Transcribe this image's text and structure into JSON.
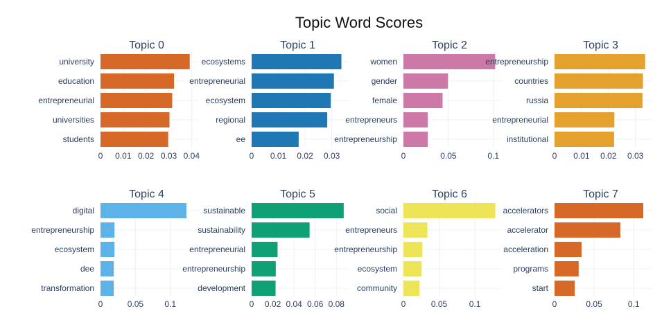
{
  "chart_data": {
    "type": "bar",
    "orientation": "horizontal",
    "title": "Topic Word Scores",
    "grid": true,
    "subplots": [
      {
        "title": "Topic 0",
        "color": "#D66828",
        "categories": [
          "university",
          "education",
          "entrepreneurial",
          "universities",
          "students"
        ],
        "values": [
          0.0392,
          0.0323,
          0.0315,
          0.0303,
          0.0297
        ],
        "xlim": [
          0,
          0.0405
        ],
        "ticks": [
          0,
          0.01,
          0.02,
          0.03,
          0.04
        ],
        "tick_labels": [
          "0",
          "0.01",
          "0.02",
          "0.03",
          "0.04"
        ]
      },
      {
        "title": "Topic 1",
        "color": "#1F77B4",
        "categories": [
          "ecosystems",
          "entrepreneurial",
          "ecosystem",
          "regional",
          "ee"
        ],
        "values": [
          0.0336,
          0.0308,
          0.0296,
          0.0283,
          0.0176
        ],
        "xlim": [
          0,
          0.0345
        ],
        "ticks": [
          0,
          0.01,
          0.02,
          0.03
        ],
        "tick_labels": [
          "0",
          "0.01",
          "0.02",
          "0.03"
        ]
      },
      {
        "title": "Topic 2",
        "color": "#CC79A7",
        "categories": [
          "women",
          "gender",
          "female",
          "entrepreneurs",
          "entrepreneurship"
        ],
        "values": [
          0.102,
          0.0495,
          0.0435,
          0.027,
          0.027
        ],
        "xlim": [
          0,
          0.1025
        ],
        "ticks": [
          0,
          0.05,
          0.1
        ],
        "tick_labels": [
          "0",
          "0.05",
          "0.1"
        ]
      },
      {
        "title": "Topic 3",
        "color": "#E5A12E",
        "categories": [
          "entrepreneurship",
          "countries",
          "russia",
          "entrepreneurial",
          "institutional"
        ],
        "values": [
          0.0336,
          0.0328,
          0.0326,
          0.0222,
          0.0221
        ],
        "xlim": [
          0,
          0.0342
        ],
        "ticks": [
          0,
          0.01,
          0.02,
          0.03
        ],
        "tick_labels": [
          "0",
          "0.01",
          "0.02",
          "0.03"
        ]
      },
      {
        "title": "Topic 4",
        "color": "#5DB3E8",
        "categories": [
          "digital",
          "entrepreneurship",
          "ecosystem",
          "dee",
          "transformation"
        ],
        "values": [
          0.123,
          0.02,
          0.02,
          0.019,
          0.019
        ],
        "xlim": [
          0,
          0.132
        ],
        "ticks": [
          0,
          0.05,
          0.1
        ],
        "tick_labels": [
          "0",
          "0.05",
          "0.1"
        ]
      },
      {
        "title": "Topic 5",
        "color": "#0FA075",
        "categories": [
          "sustainable",
          "sustainability",
          "entrepreneurial",
          "entrepreneurship",
          "development"
        ],
        "values": [
          0.0869,
          0.0547,
          0.0245,
          0.0228,
          0.0226
        ],
        "xlim": [
          0,
          0.087
        ],
        "ticks": [
          0,
          0.02,
          0.04,
          0.06,
          0.08
        ],
        "tick_labels": [
          "0",
          "0.02",
          "0.04",
          "0.06",
          "0.08"
        ]
      },
      {
        "title": "Topic 6",
        "color": "#EEE457",
        "categories": [
          "social",
          "entrepreneurs",
          "entrepreneurship",
          "ecosystem",
          "community"
        ],
        "values": [
          0.1285,
          0.0335,
          0.0265,
          0.0255,
          0.0225
        ],
        "xlim": [
          0,
          0.129
        ],
        "ticks": [
          0,
          0.05,
          0.1
        ],
        "tick_labels": [
          "0",
          "0.05",
          "0.1"
        ]
      },
      {
        "title": "Topic 7",
        "color": "#D66828",
        "categories": [
          "accelerators",
          "accelerator",
          "acceleration",
          "programs",
          "start"
        ],
        "values": [
          0.1121,
          0.0831,
          0.0341,
          0.0305,
          0.0255
        ],
        "xlim": [
          0,
          0.1165
        ],
        "ticks": [
          0,
          0.05,
          0.1
        ],
        "tick_labels": [
          "0",
          "0.05",
          "0.1"
        ]
      }
    ]
  }
}
